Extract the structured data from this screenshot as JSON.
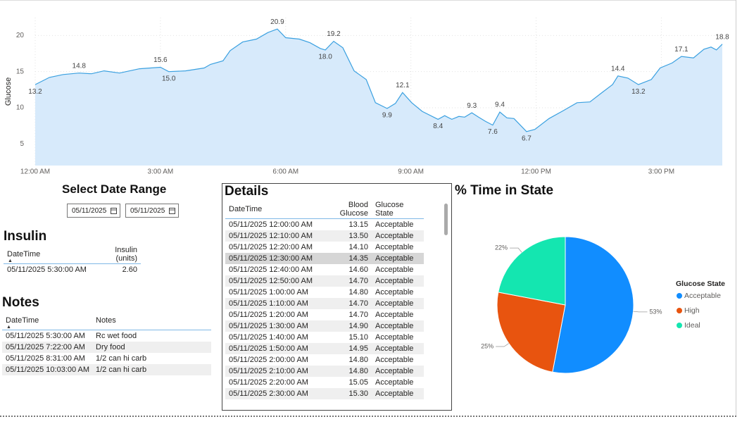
{
  "chart_data": [
    {
      "type": "area",
      "y_label": "Glucose",
      "x": [
        0,
        0.34,
        0.67,
        1.05,
        1.35,
        1.65,
        2.02,
        2.5,
        3.0,
        3.2,
        3.6,
        4.05,
        4.2,
        4.5,
        4.67,
        4.97,
        5.3,
        5.57,
        5.8,
        6.0,
        6.33,
        6.58,
        6.83,
        6.95,
        7.15,
        7.37,
        7.64,
        7.93,
        8.15,
        8.43,
        8.63,
        8.8,
        9.02,
        9.27,
        9.65,
        9.81,
        9.98,
        10.15,
        10.29,
        10.46,
        10.62,
        10.79,
        10.96,
        11.13,
        11.3,
        11.47,
        11.77,
        11.97,
        12.31,
        12.65,
        12.98,
        13.29,
        13.58,
        13.83,
        13.96,
        14.2,
        14.45,
        14.76,
        14.97,
        15.26,
        15.48,
        15.77,
        16.02,
        16.19,
        16.32,
        16.46
      ],
      "values": [
        13.2,
        14.2,
        14.6,
        14.8,
        14.7,
        15.1,
        14.8,
        15.4,
        15.6,
        15.0,
        15.1,
        15.5,
        16.0,
        16.5,
        17.9,
        19.1,
        19.5,
        20.4,
        20.9,
        19.7,
        19.5,
        19.0,
        18.2,
        18.0,
        19.2,
        18.3,
        15.1,
        13.9,
        10.7,
        9.9,
        10.6,
        12.1,
        10.7,
        9.5,
        8.4,
        8.9,
        8.4,
        8.8,
        8.7,
        9.3,
        8.7,
        8.1,
        7.6,
        9.4,
        8.6,
        8.5,
        6.7,
        7.0,
        8.5,
        9.6,
        10.7,
        10.8,
        12.1,
        13.2,
        14.4,
        14.1,
        13.2,
        13.9,
        15.5,
        16.2,
        17.1,
        16.9,
        18.1,
        18.4,
        18.0,
        18.8
      ],
      "value_labels": [
        "13.2",
        null,
        null,
        "14.8",
        null,
        null,
        null,
        null,
        "15.6",
        "15.0",
        null,
        null,
        null,
        null,
        null,
        null,
        null,
        null,
        "20.9",
        null,
        null,
        null,
        null,
        "18.0",
        "19.2",
        null,
        null,
        null,
        null,
        "9.9",
        null,
        "12.1",
        null,
        null,
        "8.4",
        null,
        null,
        null,
        null,
        "9.3",
        null,
        null,
        "7.6",
        "9.4",
        null,
        null,
        "6.7",
        null,
        null,
        null,
        null,
        null,
        null,
        null,
        "14.4",
        null,
        "13.2",
        null,
        null,
        null,
        "17.1",
        null,
        null,
        null,
        null,
        "18.8"
      ],
      "color": "#3aa0e0",
      "fill": "#d7eafb",
      "xlim": [
        0,
        16.46
      ],
      "xticks": [
        {
          "value": 0,
          "label": "12:00 AM"
        },
        {
          "value": 3,
          "label": "3:00 AM"
        },
        {
          "value": 6,
          "label": "6:00 AM"
        },
        {
          "value": 9,
          "label": "9:00 AM"
        },
        {
          "value": 12,
          "label": "12:00 PM"
        },
        {
          "value": 15,
          "label": "3:00 PM"
        }
      ],
      "ylim": [
        2,
        21.5
      ],
      "yticks": [
        5,
        10,
        15,
        20
      ],
      "grid": true
    },
    {
      "type": "pie",
      "title": "% Time in State",
      "legend_title": "Glucose State",
      "categories": [
        "Acceptable",
        "High",
        "Ideal"
      ],
      "values": [
        53,
        25,
        22
      ],
      "value_labels": [
        "53%",
        "25%",
        "22%"
      ],
      "colors": [
        "#118dff",
        "#e8540f",
        "#14e6b0"
      ]
    }
  ],
  "date_range": {
    "title": "Select Date Range",
    "start": "05/11/2025",
    "end": "05/11/2025"
  },
  "insulin": {
    "title": "Insulin",
    "columns": [
      "DateTime",
      "Insulin (units)"
    ],
    "rows": [
      [
        "05/11/2025 5:30:00 AM",
        "2.60"
      ]
    ]
  },
  "notes": {
    "title": "Notes",
    "columns": [
      "DateTime",
      "Notes"
    ],
    "rows": [
      [
        "05/11/2025 5:30:00 AM",
        "Rc wet food"
      ],
      [
        "05/11/2025 7:22:00 AM",
        "Dry food"
      ],
      [
        "05/11/2025 8:31:00 AM",
        "1/2 can hi carb"
      ],
      [
        "05/11/2025 10:03:00 AM",
        "1/2 can hi carb"
      ]
    ]
  },
  "details": {
    "title": "Details",
    "columns": [
      "DateTime",
      "Blood Glucose",
      "Glucose State"
    ],
    "rows": [
      [
        "05/11/2025 12:00:00 AM",
        "13.15",
        "Acceptable"
      ],
      [
        "05/11/2025 12:10:00 AM",
        "13.50",
        "Acceptable"
      ],
      [
        "05/11/2025 12:20:00 AM",
        "14.10",
        "Acceptable"
      ],
      [
        "05/11/2025 12:30:00 AM",
        "14.35",
        "Acceptable"
      ],
      [
        "05/11/2025 12:40:00 AM",
        "14.60",
        "Acceptable"
      ],
      [
        "05/11/2025 12:50:00 AM",
        "14.70",
        "Acceptable"
      ],
      [
        "05/11/2025 1:00:00 AM",
        "14.80",
        "Acceptable"
      ],
      [
        "05/11/2025 1:10:00 AM",
        "14.70",
        "Acceptable"
      ],
      [
        "05/11/2025 1:20:00 AM",
        "14.70",
        "Acceptable"
      ],
      [
        "05/11/2025 1:30:00 AM",
        "14.90",
        "Acceptable"
      ],
      [
        "05/11/2025 1:40:00 AM",
        "15.10",
        "Acceptable"
      ],
      [
        "05/11/2025 1:50:00 AM",
        "14.95",
        "Acceptable"
      ],
      [
        "05/11/2025 2:00:00 AM",
        "14.80",
        "Acceptable"
      ],
      [
        "05/11/2025 2:10:00 AM",
        "14.80",
        "Acceptable"
      ],
      [
        "05/11/2025 2:20:00 AM",
        "15.05",
        "Acceptable"
      ],
      [
        "05/11/2025 2:30:00 AM",
        "15.30",
        "Acceptable"
      ]
    ]
  }
}
